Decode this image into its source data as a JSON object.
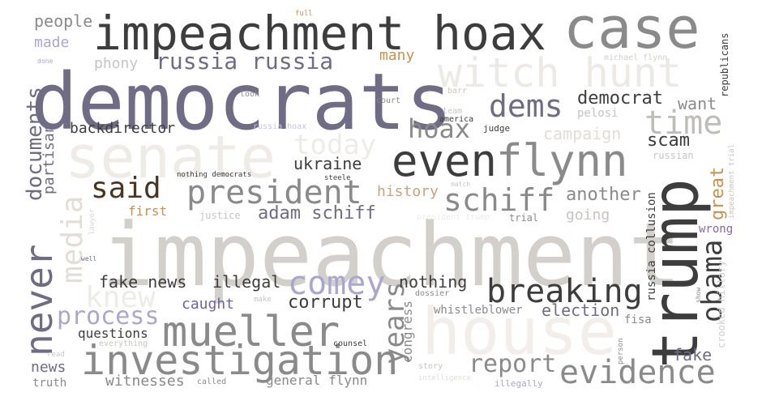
{
  "palette": {
    "slate": "#6f6c85",
    "dark": "#3d3d3d",
    "gray": "#8a8a8a",
    "light_gray": "#c8c4c0",
    "cream": "#efebe6",
    "beige": "#e4ddd6",
    "brown": "#4a3520",
    "gold": "#c9924a",
    "tan": "#c9a37a",
    "lavender": "#a9a7cf",
    "purple": "#6f63a8",
    "pale": "#d8d4e4"
  },
  "words": [
    "impeachment",
    "democrats",
    "impeachment hoax",
    "case",
    "house",
    "trump",
    "senate",
    "witch hunt",
    "investigation",
    "mueller",
    "evidence",
    "even",
    "flynn",
    "president",
    "never",
    "breaking",
    "comey",
    "schiff",
    "time",
    "dems",
    "said",
    "hoax",
    "obama",
    "knew",
    "years",
    "media",
    "russia russia",
    "process",
    "report",
    "today",
    "documents",
    "adam schiff",
    "corrupt",
    "fake news",
    "illegal",
    "ukraine",
    "democrat",
    "scam",
    "another",
    "great",
    "nothing",
    "election",
    "campaign",
    "want",
    "fake",
    "backdirector",
    "history",
    "partisan",
    "caught",
    "witnesses",
    "news",
    "questions",
    "general flynn",
    "people",
    "made",
    "phony",
    "many",
    "truth",
    "first",
    "going",
    "russia collusion",
    "whistleblower",
    "congress",
    "wrong",
    "republicans",
    "pelosi",
    "russian",
    "michael flynn",
    "crooked hillary",
    "fisa",
    "judge",
    "america",
    "court",
    "team",
    "barr",
    "look",
    "full",
    "done",
    "russia hoax",
    "nothing democrats",
    "steele",
    "justice",
    "president trump",
    "trial",
    "lawyer",
    "well",
    "dossier",
    "make",
    "match",
    "show",
    "read",
    "everything",
    "counsel",
    "called",
    "story",
    "intelligence",
    "illegally",
    "person",
    "impeachment trial"
  ]
}
